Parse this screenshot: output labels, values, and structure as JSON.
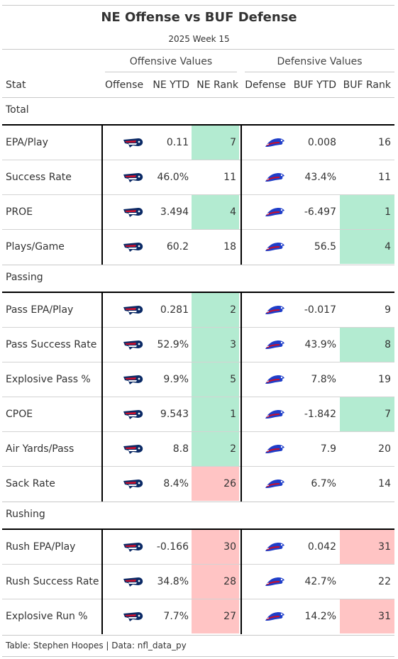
{
  "title": "NE Offense vs BUF Defense",
  "subtitle": "2025 Week 15",
  "spanners": {
    "offense": "Offensive Values",
    "defense": "Defensive Values"
  },
  "columns": {
    "stat": "Stat",
    "offense": "Offense",
    "ne_ytd": "NE YTD",
    "ne_rank": "NE Rank",
    "defense": "Defense",
    "buf_ytd": "BUF YTD",
    "buf_rank": "BUF Rank"
  },
  "colors": {
    "good": "#b3ebd1",
    "bad": "#ffc4c4",
    "patriots_navy": "#0b2a66",
    "patriots_red": "#c8102e",
    "bills_blue": "#1f3ec9",
    "bills_red": "#c8102e"
  },
  "icons": {
    "offense_logo": "patriots-logo-icon",
    "defense_logo": "bills-logo-icon"
  },
  "groups": [
    {
      "name": "Total",
      "rows": [
        {
          "stat": "EPA/Play",
          "ne_ytd": "0.11",
          "ne_rank": "7",
          "ne_shade": "good",
          "buf_ytd": "0.008",
          "buf_rank": "16",
          "buf_shade": ""
        },
        {
          "stat": "Success Rate",
          "ne_ytd": "46.0%",
          "ne_rank": "11",
          "ne_shade": "",
          "buf_ytd": "43.4%",
          "buf_rank": "11",
          "buf_shade": ""
        },
        {
          "stat": "PROE",
          "ne_ytd": "3.494",
          "ne_rank": "4",
          "ne_shade": "good",
          "buf_ytd": "-6.497",
          "buf_rank": "1",
          "buf_shade": "good"
        },
        {
          "stat": "Plays/Game",
          "ne_ytd": "60.2",
          "ne_rank": "18",
          "ne_shade": "",
          "buf_ytd": "56.5",
          "buf_rank": "4",
          "buf_shade": "good"
        }
      ]
    },
    {
      "name": "Passing",
      "rows": [
        {
          "stat": "Pass EPA/Play",
          "ne_ytd": "0.281",
          "ne_rank": "2",
          "ne_shade": "good",
          "buf_ytd": "-0.017",
          "buf_rank": "9",
          "buf_shade": ""
        },
        {
          "stat": "Pass Success Rate",
          "ne_ytd": "52.9%",
          "ne_rank": "3",
          "ne_shade": "good",
          "buf_ytd": "43.9%",
          "buf_rank": "8",
          "buf_shade": "good"
        },
        {
          "stat": "Explosive Pass %",
          "ne_ytd": "9.9%",
          "ne_rank": "5",
          "ne_shade": "good",
          "buf_ytd": "7.8%",
          "buf_rank": "19",
          "buf_shade": ""
        },
        {
          "stat": "CPOE",
          "ne_ytd": "9.543",
          "ne_rank": "1",
          "ne_shade": "good",
          "buf_ytd": "-1.842",
          "buf_rank": "7",
          "buf_shade": "good"
        },
        {
          "stat": "Air Yards/Pass",
          "ne_ytd": "8.8",
          "ne_rank": "2",
          "ne_shade": "good",
          "buf_ytd": "7.9",
          "buf_rank": "20",
          "buf_shade": ""
        },
        {
          "stat": "Sack Rate",
          "ne_ytd": "8.4%",
          "ne_rank": "26",
          "ne_shade": "bad",
          "buf_ytd": "6.7%",
          "buf_rank": "14",
          "buf_shade": ""
        }
      ]
    },
    {
      "name": "Rushing",
      "rows": [
        {
          "stat": "Rush EPA/Play",
          "ne_ytd": "-0.166",
          "ne_rank": "30",
          "ne_shade": "bad",
          "buf_ytd": "0.042",
          "buf_rank": "31",
          "buf_shade": "bad"
        },
        {
          "stat": "Rush Success Rate",
          "ne_ytd": "34.8%",
          "ne_rank": "28",
          "ne_shade": "bad",
          "buf_ytd": "42.7%",
          "buf_rank": "22",
          "buf_shade": ""
        },
        {
          "stat": "Explosive Run %",
          "ne_ytd": "7.7%",
          "ne_rank": "27",
          "ne_shade": "bad",
          "buf_ytd": "14.2%",
          "buf_rank": "31",
          "buf_shade": "bad"
        }
      ]
    }
  ],
  "footer": "Table: Stephen Hoopes | Data: nfl_data_py"
}
